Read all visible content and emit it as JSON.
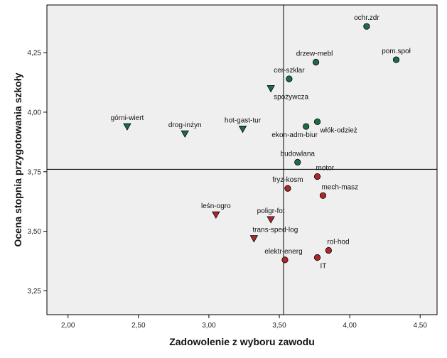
{
  "chart_data": {
    "type": "scatter",
    "title": "",
    "xlabel": "Zadowolenie z wyboru zawodu",
    "ylabel": "Ocena stopnia przygotowania szkoły",
    "xlim": [
      1.85,
      4.62
    ],
    "ylim": [
      3.15,
      4.45
    ],
    "x_ticks": [
      2.0,
      2.5,
      3.0,
      3.5,
      4.0,
      4.5
    ],
    "x_tick_labels": [
      "2,00",
      "2,50",
      "3,00",
      "3,50",
      "4,00",
      "4,50"
    ],
    "y_ticks": [
      3.25,
      3.5,
      3.75,
      4.0,
      4.25
    ],
    "y_tick_labels": [
      "3,25",
      "3,50",
      "3,75",
      "4,00",
      "4,25"
    ],
    "grid": false,
    "reference_lines": {
      "x": 3.53,
      "y": 3.76
    },
    "colors": {
      "green": "#1e6b47",
      "red": "#b3252c",
      "plot_bg": "#efefef",
      "axis": "#000000"
    },
    "points": [
      {
        "label": "ochr.zdr",
        "x": 4.12,
        "y": 4.36,
        "marker": "circle",
        "color": "green",
        "label_pos": "above"
      },
      {
        "label": "pom.społ",
        "x": 4.33,
        "y": 4.22,
        "marker": "circle",
        "color": "green",
        "label_pos": "above"
      },
      {
        "label": "drzew-mebl",
        "x": 3.76,
        "y": 4.21,
        "marker": "circle",
        "color": "green",
        "label_pos": "above-left"
      },
      {
        "label": "cer-szklar",
        "x": 3.57,
        "y": 4.14,
        "marker": "circle",
        "color": "green",
        "label_pos": "above"
      },
      {
        "label": "spożywcza",
        "x": 3.44,
        "y": 4.1,
        "marker": "triangle",
        "color": "green",
        "label_pos": "below-right"
      },
      {
        "label": "włók-odzież",
        "x": 3.77,
        "y": 3.96,
        "marker": "circle",
        "color": "green",
        "label_pos": "below-right"
      },
      {
        "label": "ekon-adm-biur",
        "x": 3.69,
        "y": 3.94,
        "marker": "circle",
        "color": "green",
        "label_pos": "below-left"
      },
      {
        "label": "górni-wiert",
        "x": 2.42,
        "y": 3.94,
        "marker": "triangle",
        "color": "green",
        "label_pos": "above"
      },
      {
        "label": "drog-inżyn",
        "x": 2.83,
        "y": 3.91,
        "marker": "triangle",
        "color": "green",
        "label_pos": "above"
      },
      {
        "label": "hot-gast-tur",
        "x": 3.24,
        "y": 3.93,
        "marker": "triangle",
        "color": "green",
        "label_pos": "above"
      },
      {
        "label": "budowlana",
        "x": 3.63,
        "y": 3.79,
        "marker": "circle",
        "color": "green",
        "label_pos": "above"
      },
      {
        "label": "motor",
        "x": 3.77,
        "y": 3.73,
        "marker": "circle",
        "color": "red",
        "label_pos": "above-right"
      },
      {
        "label": "fryz-kosm",
        "x": 3.56,
        "y": 3.68,
        "marker": "circle",
        "color": "red",
        "label_pos": "above"
      },
      {
        "label": "mech-masz",
        "x": 3.81,
        "y": 3.65,
        "marker": "circle",
        "color": "red",
        "label_pos": "above-right"
      },
      {
        "label": "leśn-ogro",
        "x": 3.05,
        "y": 3.57,
        "marker": "triangle",
        "color": "red",
        "label_pos": "above"
      },
      {
        "label": "poligr-fot",
        "x": 3.44,
        "y": 3.55,
        "marker": "triangle",
        "color": "red",
        "label_pos": "above"
      },
      {
        "label": "trans-sped-log",
        "x": 3.32,
        "y": 3.47,
        "marker": "triangle",
        "color": "red",
        "label_pos": "above-right"
      },
      {
        "label": "rol-hod",
        "x": 3.85,
        "y": 3.42,
        "marker": "circle",
        "color": "red",
        "label_pos": "above-right"
      },
      {
        "label": "elektr-energ",
        "x": 3.54,
        "y": 3.38,
        "marker": "circle",
        "color": "red",
        "label_pos": "above-left"
      },
      {
        "label": "IT",
        "x": 3.77,
        "y": 3.39,
        "marker": "circle",
        "color": "red",
        "label_pos": "below-right"
      }
    ]
  }
}
